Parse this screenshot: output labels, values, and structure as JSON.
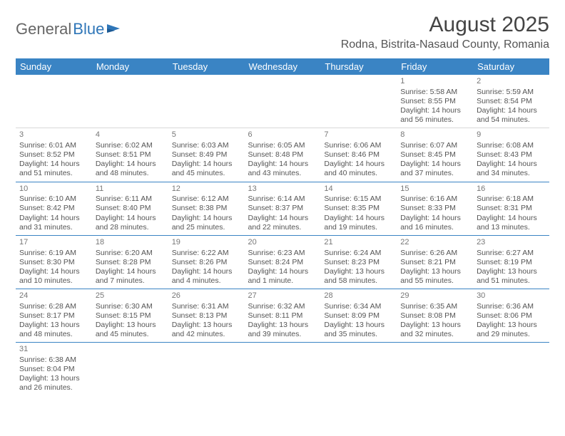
{
  "header": {
    "logo_general": "General",
    "logo_blue": "Blue",
    "month_title": "August 2025",
    "location": "Rodna, Bistrita-Nasaud County, Romania"
  },
  "colors": {
    "header_bg": "#3a84c4",
    "header_text": "#ffffff",
    "cell_text": "#555555",
    "row_border": "#3a84c4"
  },
  "day_labels": [
    "Sunday",
    "Monday",
    "Tuesday",
    "Wednesday",
    "Thursday",
    "Friday",
    "Saturday"
  ],
  "weeks": [
    [
      null,
      null,
      null,
      null,
      null,
      {
        "d": "1",
        "sr": "5:58 AM",
        "ss": "8:55 PM",
        "dl": "14 hours and 56 minutes."
      },
      {
        "d": "2",
        "sr": "5:59 AM",
        "ss": "8:54 PM",
        "dl": "14 hours and 54 minutes."
      }
    ],
    [
      {
        "d": "3",
        "sr": "6:01 AM",
        "ss": "8:52 PM",
        "dl": "14 hours and 51 minutes."
      },
      {
        "d": "4",
        "sr": "6:02 AM",
        "ss": "8:51 PM",
        "dl": "14 hours and 48 minutes."
      },
      {
        "d": "5",
        "sr": "6:03 AM",
        "ss": "8:49 PM",
        "dl": "14 hours and 45 minutes."
      },
      {
        "d": "6",
        "sr": "6:05 AM",
        "ss": "8:48 PM",
        "dl": "14 hours and 43 minutes."
      },
      {
        "d": "7",
        "sr": "6:06 AM",
        "ss": "8:46 PM",
        "dl": "14 hours and 40 minutes."
      },
      {
        "d": "8",
        "sr": "6:07 AM",
        "ss": "8:45 PM",
        "dl": "14 hours and 37 minutes."
      },
      {
        "d": "9",
        "sr": "6:08 AM",
        "ss": "8:43 PM",
        "dl": "14 hours and 34 minutes."
      }
    ],
    [
      {
        "d": "10",
        "sr": "6:10 AM",
        "ss": "8:42 PM",
        "dl": "14 hours and 31 minutes."
      },
      {
        "d": "11",
        "sr": "6:11 AM",
        "ss": "8:40 PM",
        "dl": "14 hours and 28 minutes."
      },
      {
        "d": "12",
        "sr": "6:12 AM",
        "ss": "8:38 PM",
        "dl": "14 hours and 25 minutes."
      },
      {
        "d": "13",
        "sr": "6:14 AM",
        "ss": "8:37 PM",
        "dl": "14 hours and 22 minutes."
      },
      {
        "d": "14",
        "sr": "6:15 AM",
        "ss": "8:35 PM",
        "dl": "14 hours and 19 minutes."
      },
      {
        "d": "15",
        "sr": "6:16 AM",
        "ss": "8:33 PM",
        "dl": "14 hours and 16 minutes."
      },
      {
        "d": "16",
        "sr": "6:18 AM",
        "ss": "8:31 PM",
        "dl": "14 hours and 13 minutes."
      }
    ],
    [
      {
        "d": "17",
        "sr": "6:19 AM",
        "ss": "8:30 PM",
        "dl": "14 hours and 10 minutes."
      },
      {
        "d": "18",
        "sr": "6:20 AM",
        "ss": "8:28 PM",
        "dl": "14 hours and 7 minutes."
      },
      {
        "d": "19",
        "sr": "6:22 AM",
        "ss": "8:26 PM",
        "dl": "14 hours and 4 minutes."
      },
      {
        "d": "20",
        "sr": "6:23 AM",
        "ss": "8:24 PM",
        "dl": "14 hours and 1 minute."
      },
      {
        "d": "21",
        "sr": "6:24 AM",
        "ss": "8:23 PM",
        "dl": "13 hours and 58 minutes."
      },
      {
        "d": "22",
        "sr": "6:26 AM",
        "ss": "8:21 PM",
        "dl": "13 hours and 55 minutes."
      },
      {
        "d": "23",
        "sr": "6:27 AM",
        "ss": "8:19 PM",
        "dl": "13 hours and 51 minutes."
      }
    ],
    [
      {
        "d": "24",
        "sr": "6:28 AM",
        "ss": "8:17 PM",
        "dl": "13 hours and 48 minutes."
      },
      {
        "d": "25",
        "sr": "6:30 AM",
        "ss": "8:15 PM",
        "dl": "13 hours and 45 minutes."
      },
      {
        "d": "26",
        "sr": "6:31 AM",
        "ss": "8:13 PM",
        "dl": "13 hours and 42 minutes."
      },
      {
        "d": "27",
        "sr": "6:32 AM",
        "ss": "8:11 PM",
        "dl": "13 hours and 39 minutes."
      },
      {
        "d": "28",
        "sr": "6:34 AM",
        "ss": "8:09 PM",
        "dl": "13 hours and 35 minutes."
      },
      {
        "d": "29",
        "sr": "6:35 AM",
        "ss": "8:08 PM",
        "dl": "13 hours and 32 minutes."
      },
      {
        "d": "30",
        "sr": "6:36 AM",
        "ss": "8:06 PM",
        "dl": "13 hours and 29 minutes."
      }
    ],
    [
      {
        "d": "31",
        "sr": "6:38 AM",
        "ss": "8:04 PM",
        "dl": "13 hours and 26 minutes."
      },
      null,
      null,
      null,
      null,
      null,
      null
    ]
  ],
  "labels": {
    "sunrise": "Sunrise:",
    "sunset": "Sunset:",
    "daylight": "Daylight:"
  }
}
